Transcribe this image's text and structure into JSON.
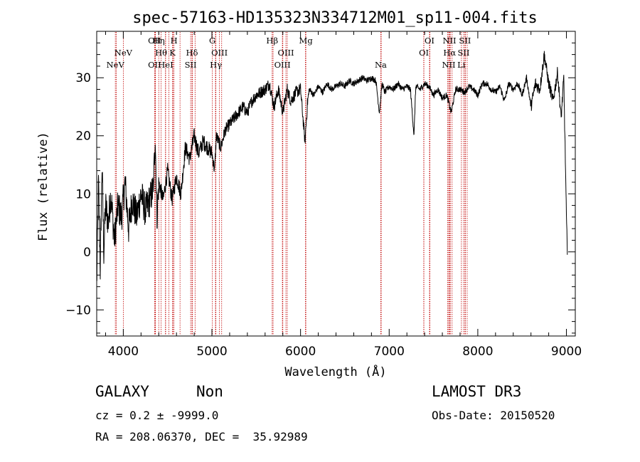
{
  "chart_data": {
    "type": "line",
    "title": "spec-57163-HD135323N334712M01_sp11-004.fits",
    "xlabel": "Wavelength (Å)",
    "ylabel": "Flux (relative)",
    "xlim": [
      3700,
      9100
    ],
    "ylim": [
      -14.5,
      38
    ],
    "xticks": [
      4000,
      5000,
      6000,
      7000,
      8000,
      9000
    ],
    "yticks": [
      -10,
      0,
      10,
      20,
      30
    ],
    "series": [
      {
        "name": "flux",
        "x": [
          3700,
          3720,
          3740,
          3760,
          3780,
          3800,
          3830,
          3860,
          3900,
          3940,
          3980,
          4020,
          4060,
          4100,
          4150,
          4200,
          4250,
          4300,
          4340,
          4360,
          4380,
          4400,
          4450,
          4500,
          4550,
          4600,
          4650,
          4700,
          4750,
          4800,
          4850,
          4900,
          4950,
          5000,
          5030,
          5050,
          5100,
          5150,
          5200,
          5250,
          5300,
          5350,
          5400,
          5450,
          5500,
          5550,
          5600,
          5650,
          5700,
          5750,
          5800,
          5850,
          5890,
          5950,
          6000,
          6050,
          6080,
          6100,
          6150,
          6200,
          6250,
          6300,
          6350,
          6400,
          6450,
          6500,
          6550,
          6600,
          6650,
          6700,
          6750,
          6800,
          6850,
          6890,
          6920,
          6950,
          7000,
          7050,
          7100,
          7150,
          7200,
          7240,
          7280,
          7300,
          7350,
          7400,
          7450,
          7500,
          7550,
          7600,
          7650,
          7700,
          7750,
          7800,
          7850,
          7900,
          7950,
          8000,
          8050,
          8100,
          8150,
          8200,
          8250,
          8300,
          8350,
          8400,
          8450,
          8500,
          8550,
          8600,
          8650,
          8700,
          8750,
          8800,
          8850,
          8900,
          8940,
          8970,
          9000,
          9010
        ],
        "y": [
          -6,
          12,
          -3,
          15,
          0,
          8,
          5,
          10,
          2,
          8,
          6,
          12,
          4,
          9,
          6,
          10,
          7,
          9,
          11,
          20,
          6,
          12,
          9,
          14,
          9,
          13,
          10,
          18,
          16,
          20,
          17,
          19,
          18,
          17,
          14,
          20,
          18,
          21,
          22,
          23,
          24,
          25,
          24,
          26,
          27,
          27.5,
          28,
          29,
          25,
          28,
          24,
          28,
          26,
          27.5,
          28,
          19,
          26,
          28,
          27,
          28.5,
          27.5,
          29,
          28,
          28.5,
          29,
          28.5,
          29.5,
          29,
          29.5,
          30,
          29.5,
          30,
          29.5,
          24,
          29,
          27.5,
          28.5,
          28,
          29,
          28,
          28.5,
          28,
          20,
          28.5,
          28,
          29,
          28.5,
          27,
          28,
          26.5,
          27,
          24,
          28,
          28,
          27.5,
          28.5,
          28,
          27,
          29,
          29,
          28,
          27.5,
          28.5,
          26,
          29,
          28,
          29,
          27,
          30,
          25,
          29,
          28,
          34,
          29,
          26,
          31,
          23,
          30,
          6,
          -0.5
        ]
      }
    ],
    "lines": [
      {
        "label": "NeV",
        "x": 3910,
        "row": 2
      },
      {
        "label": "NeV",
        "x": 4000,
        "row": 1
      },
      {
        "label": "OII",
        "x": 4353,
        "row": 0
      },
      {
        "label": "OII",
        "x": 4353,
        "row": 2
      },
      {
        "label": "Hη",
        "x": 4400,
        "row": 0
      },
      {
        "label": "Hθ",
        "x": 4427,
        "row": 1
      },
      {
        "label": "HeI",
        "x": 4478,
        "row": 2
      },
      {
        "label": "H",
        "x": 4572,
        "row": 0
      },
      {
        "label": "K",
        "x": 4555,
        "row": 1
      },
      {
        "label": "Hδ",
        "x": 4775,
        "row": 1
      },
      {
        "label": "SII",
        "x": 4760,
        "row": 2
      },
      {
        "label": "G",
        "x": 5005,
        "row": 0
      },
      {
        "label": "OIII",
        "x": 5085,
        "row": 1
      },
      {
        "label": "Hγ",
        "x": 5045,
        "row": 2
      },
      {
        "label": "Hβ",
        "x": 5680,
        "row": 0
      },
      {
        "label": "OIII",
        "x": 5835,
        "row": 1
      },
      {
        "label": "OIII",
        "x": 5795,
        "row": 2
      },
      {
        "label": "Mg",
        "x": 6060,
        "row": 0
      },
      {
        "label": "Na",
        "x": 6905,
        "row": 2
      },
      {
        "label": "OI",
        "x": 7455,
        "row": 0
      },
      {
        "label": "OI",
        "x": 7392,
        "row": 1
      },
      {
        "label": "NII",
        "x": 7680,
        "row": 0
      },
      {
        "label": "Hα",
        "x": 7682,
        "row": 1
      },
      {
        "label": "NII",
        "x": 7672,
        "row": 2
      },
      {
        "label": "SII",
        "x": 7855,
        "row": 0
      },
      {
        "label": "SII",
        "x": 7840,
        "row": 1
      },
      {
        "label": "Li",
        "x": 7815,
        "row": 2
      }
    ],
    "extra_line_positions": [
      3920,
      4000,
      4360,
      4363,
      4475,
      4515,
      4560,
      4640,
      4780,
      4810,
      5040,
      5110,
      5690,
      5800,
      5850,
      6055,
      6910,
      7390,
      7460,
      7660,
      7690,
      7710,
      7860,
      7880
    ]
  },
  "info": {
    "class_label": "GALAXY",
    "subclass_label": "Non",
    "cz_text": "cz = 0.2 ± -9999.0",
    "radec_text": "RA = 208.06370, DEC =  35.92989",
    "survey": "LAMOST DR3",
    "obs_date": "Obs-Date: 20150520"
  }
}
